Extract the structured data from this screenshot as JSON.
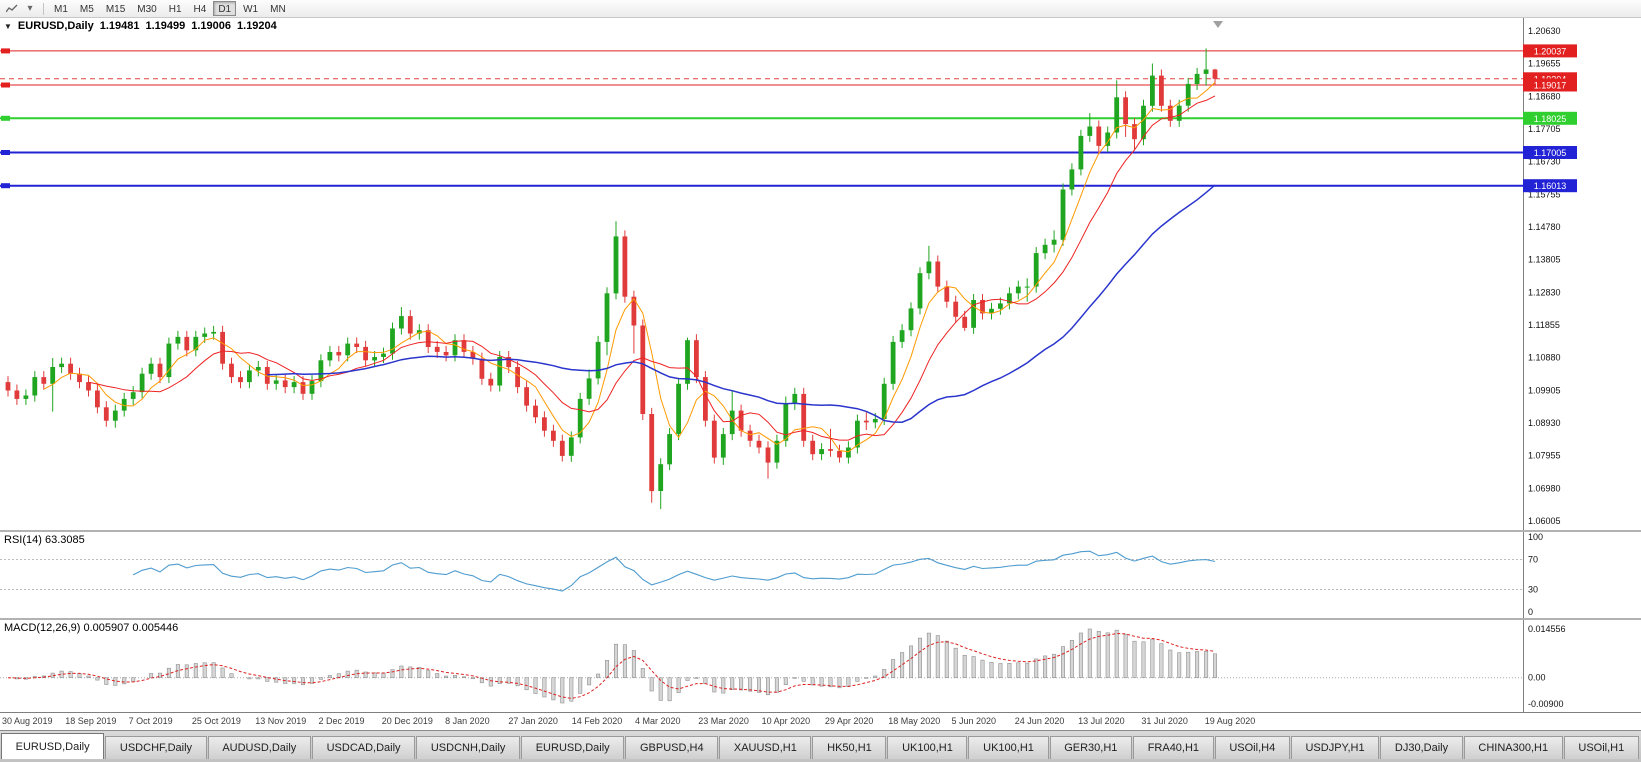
{
  "toolbar": {
    "timeframes": [
      {
        "label": "M1",
        "active": false
      },
      {
        "label": "M5",
        "active": false
      },
      {
        "label": "M15",
        "active": false
      },
      {
        "label": "M30",
        "active": false
      },
      {
        "label": "H1",
        "active": false
      },
      {
        "label": "H4",
        "active": false
      },
      {
        "label": "D1",
        "active": true
      },
      {
        "label": "W1",
        "active": false
      },
      {
        "label": "MN",
        "active": false
      }
    ]
  },
  "main_chart": {
    "header": {
      "collapse_icon": "▼",
      "symbol": "EURUSD,Daily",
      "open": "1.19481",
      "high": "1.19499",
      "low": "1.19006",
      "close": "1.19204"
    }
  },
  "chart_data": {
    "type": "candlestick",
    "symbol": "EURUSD",
    "period": "Daily",
    "price_range": {
      "top": 1.2063,
      "bottom": 1.06005
    },
    "y_axis_labels": [
      "1.20630",
      "1.19655",
      "1.18680",
      "1.17705",
      "1.16730",
      "1.15755",
      "1.14780",
      "1.13805",
      "1.12830",
      "1.11855",
      "1.10880",
      "1.09905",
      "1.08930",
      "1.07955",
      "1.06980",
      "1.06005"
    ],
    "x_axis_labels": [
      "30 Aug 2019",
      "18 Sep 2019",
      "7 Oct 2019",
      "25 Oct 2019",
      "13 Nov 2019",
      "2 Dec 2019",
      "20 Dec 2019",
      "8 Jan 2020",
      "27 Jan 2020",
      "14 Feb 2020",
      "4 Mar 2020",
      "23 Mar 2020",
      "10 Apr 2020",
      "29 Apr 2020",
      "18 May 2020",
      "5 Jun 2020",
      "24 Jun 2020",
      "13 Jul 2020",
      "31 Jul 2020",
      "19 Aug 2020"
    ],
    "hlines": [
      {
        "price": 1.20037,
        "label": "1.20037",
        "color": "#e22020",
        "width": 1
      },
      {
        "price": 1.19017,
        "label": "1.19017",
        "color": "#e22020",
        "width": 1
      },
      {
        "price": 1.18025,
        "label": "1.18025",
        "color": "#2fcf2f",
        "width": 2
      },
      {
        "price": 1.17005,
        "label": "1.17005",
        "color": "#2323d6",
        "width": 2
      },
      {
        "price": 1.16013,
        "label": "1.16013",
        "color": "#2323d6",
        "width": 2
      }
    ],
    "bid_line": {
      "price": 1.19204,
      "label": "1.19204",
      "color": "#e22020"
    },
    "colors": {
      "up": "#1fa51f",
      "down": "#e03a3a",
      "ma_fast": "#ff9900",
      "ma_mid": "#ee2222",
      "ma_slow": "#2a35cc"
    },
    "moving_averages": [
      {
        "period": 5,
        "color_key": "ma_fast",
        "width": 1
      },
      {
        "period": 10,
        "color_key": "ma_mid",
        "width": 1
      },
      {
        "period": 30,
        "color_key": "ma_slow",
        "width": 1.5
      }
    ],
    "ohlc": [
      [
        1.1015,
        1.1033,
        1.0972,
        1.099
      ],
      [
        1.099,
        1.1008,
        1.0947,
        1.0965
      ],
      [
        1.0965,
        1.0993,
        1.0947,
        1.0975
      ],
      [
        1.0975,
        1.1048,
        1.0957,
        1.103
      ],
      [
        1.103,
        1.1048,
        1.0992,
        1.101
      ],
      [
        1.101,
        1.1087,
        1.0927,
        1.106
      ],
      [
        1.106,
        1.1088,
        1.1042,
        1.107
      ],
      [
        1.107,
        1.1088,
        1.1022,
        1.104
      ],
      [
        1.104,
        1.1058,
        1.0997,
        1.1015
      ],
      [
        1.1015,
        1.1033,
        1.0972,
        1.099
      ],
      [
        1.099,
        1.1008,
        1.0922,
        1.094
      ],
      [
        1.094,
        1.0958,
        1.0882,
        1.09
      ],
      [
        1.09,
        1.0948,
        1.0879,
        1.093
      ],
      [
        1.093,
        1.0983,
        1.0912,
        1.0965
      ],
      [
        1.0965,
        1.1003,
        1.0947,
        1.0985
      ],
      [
        1.0985,
        1.1058,
        1.0967,
        1.104
      ],
      [
        1.104,
        1.1088,
        1.1022,
        1.107
      ],
      [
        1.107,
        1.1088,
        1.1012,
        1.103
      ],
      [
        1.103,
        1.1148,
        1.1012,
        1.113
      ],
      [
        1.113,
        1.1168,
        1.1112,
        1.115
      ],
      [
        1.115,
        1.1168,
        1.1092,
        1.111
      ],
      [
        1.111,
        1.1168,
        1.1092,
        1.115
      ],
      [
        1.115,
        1.1178,
        1.1132,
        1.116
      ],
      [
        1.116,
        1.1183,
        1.1142,
        1.1165
      ],
      [
        1.1165,
        1.1183,
        1.1052,
        1.107
      ],
      [
        1.107,
        1.1088,
        1.1012,
        1.103
      ],
      [
        1.103,
        1.1048,
        1.0997,
        1.1015
      ],
      [
        1.1015,
        1.1068,
        1.0997,
        1.105
      ],
      [
        1.105,
        1.1078,
        1.1032,
        1.106
      ],
      [
        1.106,
        1.1078,
        1.0992,
        1.101
      ],
      [
        1.101,
        1.1038,
        1.0992,
        1.102
      ],
      [
        1.102,
        1.1038,
        1.0982,
        1.1
      ],
      [
        1.1,
        1.1033,
        1.0982,
        1.1015
      ],
      [
        1.1015,
        1.1033,
        1.0962,
        1.098
      ],
      [
        1.098,
        1.1036,
        1.0962,
        1.1018
      ],
      [
        1.1018,
        1.1098,
        1.1,
        1.108
      ],
      [
        1.108,
        1.1123,
        1.1062,
        1.1105
      ],
      [
        1.1105,
        1.1123,
        1.1077,
        1.1095
      ],
      [
        1.1095,
        1.1148,
        1.1077,
        1.113
      ],
      [
        1.113,
        1.1148,
        1.1102,
        1.112
      ],
      [
        1.112,
        1.1138,
        1.1062,
        1.108
      ],
      [
        1.108,
        1.1108,
        1.1062,
        1.109
      ],
      [
        1.109,
        1.1118,
        1.1072,
        1.11
      ],
      [
        1.11,
        1.1193,
        1.1082,
        1.1175
      ],
      [
        1.1175,
        1.1239,
        1.1157,
        1.1212
      ],
      [
        1.1212,
        1.123,
        1.1142,
        1.116
      ],
      [
        1.116,
        1.1188,
        1.1142,
        1.117
      ],
      [
        1.117,
        1.1188,
        1.1102,
        1.112
      ],
      [
        1.112,
        1.1138,
        1.1087,
        1.1105
      ],
      [
        1.1105,
        1.1123,
        1.1077,
        1.1095
      ],
      [
        1.1095,
        1.1158,
        1.1077,
        1.114
      ],
      [
        1.114,
        1.1158,
        1.1087,
        1.1105
      ],
      [
        1.1105,
        1.1123,
        1.1067,
        1.1085
      ],
      [
        1.1085,
        1.1103,
        1.1007,
        1.1025
      ],
      [
        1.1025,
        1.1043,
        1.0987,
        1.1005
      ],
      [
        1.1005,
        1.1108,
        1.0987,
        1.109
      ],
      [
        1.109,
        1.1108,
        1.1042,
        1.106
      ],
      [
        1.106,
        1.1078,
        1.0982,
        1.1
      ],
      [
        1.1,
        1.1018,
        1.0927,
        1.0945
      ],
      [
        1.0945,
        1.0963,
        1.0892,
        1.091
      ],
      [
        1.091,
        1.0928,
        1.0852,
        1.087
      ],
      [
        1.087,
        1.0888,
        1.0822,
        1.084
      ],
      [
        1.084,
        1.0858,
        1.0778,
        1.0795
      ],
      [
        1.0795,
        1.0868,
        1.0777,
        1.085
      ],
      [
        1.085,
        1.0983,
        1.0832,
        1.0965
      ],
      [
        1.0965,
        1.1053,
        1.0947,
        1.1026
      ],
      [
        1.1026,
        1.1153,
        1.1008,
        1.1135
      ],
      [
        1.1135,
        1.1298,
        1.1095,
        1.128
      ],
      [
        1.128,
        1.1495,
        1.1262,
        1.145
      ],
      [
        1.145,
        1.1468,
        1.1252,
        1.127
      ],
      [
        1.127,
        1.1288,
        1.11,
        1.1184
      ],
      [
        1.1184,
        1.1202,
        1.0902,
        1.092
      ],
      [
        1.092,
        1.0938,
        1.0655,
        1.069
      ],
      [
        1.069,
        1.0788,
        1.0636,
        1.077
      ],
      [
        1.077,
        1.0878,
        1.0752,
        1.086
      ],
      [
        1.086,
        1.1028,
        1.0842,
        1.101
      ],
      [
        1.101,
        1.1148,
        1.0992,
        1.114
      ],
      [
        1.114,
        1.1158,
        1.1012,
        1.103
      ],
      [
        1.103,
        1.1048,
        1.0882,
        1.09
      ],
      [
        1.09,
        1.0918,
        1.0772,
        1.079
      ],
      [
        1.079,
        1.0878,
        1.0768,
        1.086
      ],
      [
        1.086,
        1.099,
        1.0842,
        1.093
      ],
      [
        1.093,
        1.0948,
        1.0852,
        1.087
      ],
      [
        1.087,
        1.0888,
        1.0822,
        1.084
      ],
      [
        1.084,
        1.0858,
        1.0802,
        1.082
      ],
      [
        1.082,
        1.0838,
        1.0727,
        1.0775
      ],
      [
        1.0775,
        1.0858,
        1.0757,
        1.084
      ],
      [
        1.084,
        1.0972,
        1.0822,
        1.095
      ],
      [
        1.095,
        1.0998,
        1.0932,
        1.098
      ],
      [
        1.098,
        1.0998,
        1.0822,
        1.084
      ],
      [
        1.084,
        1.0858,
        1.0782,
        1.08
      ],
      [
        1.08,
        1.0833,
        1.0782,
        1.0815
      ],
      [
        1.0815,
        1.0876,
        1.0792,
        1.081
      ],
      [
        1.081,
        1.0828,
        1.0775,
        1.079
      ],
      [
        1.079,
        1.0838,
        1.0772,
        1.082
      ],
      [
        1.082,
        1.0918,
        1.0802,
        1.09
      ],
      [
        1.09,
        1.0925,
        1.0872,
        1.0895
      ],
      [
        1.0895,
        1.0923,
        1.0877,
        1.0905
      ],
      [
        1.0905,
        1.1028,
        1.0887,
        1.101
      ],
      [
        1.101,
        1.1153,
        1.0992,
        1.1135
      ],
      [
        1.1135,
        1.1188,
        1.1117,
        1.117
      ],
      [
        1.117,
        1.1253,
        1.1152,
        1.1235
      ],
      [
        1.1235,
        1.1358,
        1.1217,
        1.134
      ],
      [
        1.134,
        1.1422,
        1.1322,
        1.1375
      ],
      [
        1.1375,
        1.1393,
        1.1282,
        1.13
      ],
      [
        1.13,
        1.1318,
        1.1237,
        1.1255
      ],
      [
        1.1255,
        1.1273,
        1.1192,
        1.121
      ],
      [
        1.121,
        1.1228,
        1.1168,
        1.1177
      ],
      [
        1.1177,
        1.1278,
        1.1159,
        1.126
      ],
      [
        1.126,
        1.1278,
        1.1202,
        1.122
      ],
      [
        1.122,
        1.1252,
        1.1202,
        1.1234
      ],
      [
        1.1234,
        1.1268,
        1.1216,
        1.125
      ],
      [
        1.125,
        1.1298,
        1.1232,
        1.128
      ],
      [
        1.128,
        1.1318,
        1.1262,
        1.13
      ],
      [
        1.13,
        1.1325,
        1.1255,
        1.13
      ],
      [
        1.13,
        1.1418,
        1.1282,
        1.14
      ],
      [
        1.14,
        1.1443,
        1.1382,
        1.1425
      ],
      [
        1.1425,
        1.1468,
        1.1402,
        1.144
      ],
      [
        1.144,
        1.1608,
        1.1422,
        1.159
      ],
      [
        1.159,
        1.1668,
        1.1572,
        1.165
      ],
      [
        1.165,
        1.1768,
        1.1632,
        1.175
      ],
      [
        1.175,
        1.1818,
        1.1732,
        1.1778
      ],
      [
        1.1778,
        1.1796,
        1.1695,
        1.172
      ],
      [
        1.172,
        1.1778,
        1.1702,
        1.176
      ],
      [
        1.176,
        1.1916,
        1.1742,
        1.1865
      ],
      [
        1.1865,
        1.1883,
        1.1747,
        1.1785
      ],
      [
        1.1785,
        1.1803,
        1.171,
        1.174
      ],
      [
        1.174,
        1.1858,
        1.1722,
        1.184
      ],
      [
        1.184,
        1.1966,
        1.1822,
        1.193
      ],
      [
        1.193,
        1.1948,
        1.1822,
        1.184
      ],
      [
        1.184,
        1.1858,
        1.1777,
        1.1795
      ],
      [
        1.1795,
        1.1858,
        1.1777,
        1.184
      ],
      [
        1.184,
        1.1923,
        1.1822,
        1.1905
      ],
      [
        1.1905,
        1.1953,
        1.1887,
        1.1935
      ],
      [
        1.1935,
        1.2011,
        1.19,
        1.1948
      ],
      [
        1.19481,
        1.19499,
        1.19006,
        1.19204
      ]
    ]
  },
  "rsi": {
    "label": "RSI(14) 63.3085",
    "axis_labels": [
      "100",
      "70",
      "30",
      "0"
    ],
    "level_lines": [
      70,
      30
    ],
    "line_color": "#4f9ccf"
  },
  "macd": {
    "label": "MACD(12,26,9) 0.005907 0.005446",
    "axis_labels": [
      "0.014556",
      "0.00",
      "-0.00900"
    ],
    "histogram_fill": "#d6d6d6",
    "histogram_stroke": "#8f8f8f",
    "signal_color": "#dd2222"
  },
  "tabs": [
    {
      "label": "EURUSD,Daily",
      "active": true
    },
    {
      "label": "USDCHF,Daily",
      "active": false
    },
    {
      "label": "AUDUSD,Daily",
      "active": false
    },
    {
      "label": "USDCAD,Daily",
      "active": false
    },
    {
      "label": "USDCNH,Daily",
      "active": false
    },
    {
      "label": "EURUSD,Daily",
      "active": false
    },
    {
      "label": "GBPUSD,H4",
      "active": false
    },
    {
      "label": "XAUUSD,H1",
      "active": false
    },
    {
      "label": "HK50,H1",
      "active": false
    },
    {
      "label": "UK100,H1",
      "active": false
    },
    {
      "label": "UK100,H1",
      "active": false
    },
    {
      "label": "GER30,H1",
      "active": false
    },
    {
      "label": "FRA40,H1",
      "active": false
    },
    {
      "label": "USOil,H4",
      "active": false
    },
    {
      "label": "USDJPY,H1",
      "active": false
    },
    {
      "label": "DJ30,Daily",
      "active": false
    },
    {
      "label": "CHINA300,H1",
      "active": false
    },
    {
      "label": "USOil,H1",
      "active": false
    }
  ]
}
